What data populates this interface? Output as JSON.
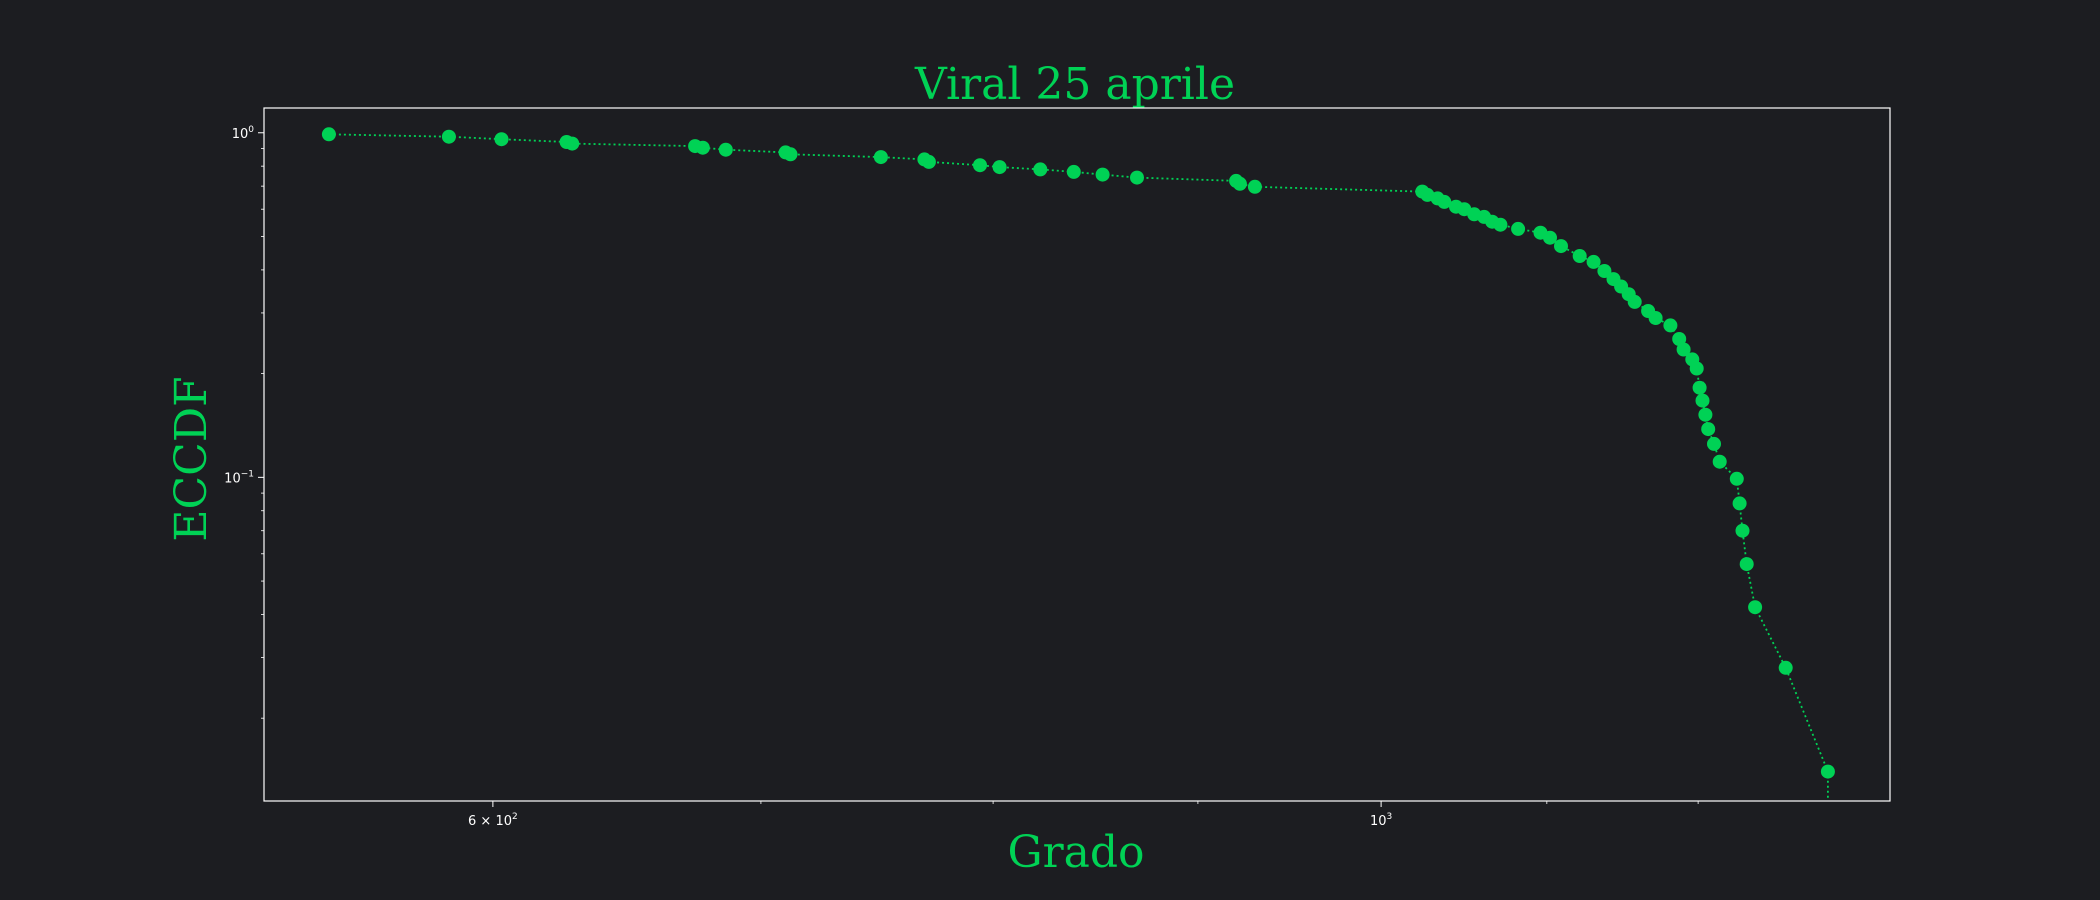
{
  "colors": {
    "background": "#1c1d21",
    "accent": "#00d255",
    "frame": "#ffffff",
    "tick_text": "#ffffff"
  },
  "chart_data": {
    "type": "scatter",
    "title": "Viral 25 aprile",
    "xlabel": "Grado",
    "ylabel": "ECCDF",
    "xscale": "log",
    "yscale": "log",
    "xlim": [
      526,
      1340
    ],
    "ylim": [
      0.0115,
      1.18
    ],
    "grid": false,
    "line_style": "dotted",
    "x_ticks": [
      {
        "value": 600,
        "label": "6 × 10²",
        "base": "6 × 10",
        "exp": "2"
      },
      {
        "value": 1000,
        "label": "10³",
        "base": "10",
        "exp": "3"
      }
    ],
    "x_minor_ticks": [
      700,
      800,
      900,
      1100,
      1200
    ],
    "y_ticks": [
      {
        "value": 1,
        "label": "10⁰",
        "base": "10",
        "exp": "0"
      },
      {
        "value": 0.1,
        "label": "10⁻¹",
        "base": "10",
        "exp": "−1"
      }
    ],
    "y_minor_ticks": [
      0.9,
      0.8,
      0.7,
      0.6,
      0.5,
      0.4,
      0.3,
      0.2,
      0.09,
      0.08,
      0.07,
      0.06,
      0.05,
      0.04,
      0.03,
      0.02
    ],
    "series": [
      {
        "points": [
          [
            546,
            0.99
          ],
          [
            585,
            0.974
          ],
          [
            603,
            0.958
          ],
          [
            626,
            0.94
          ],
          [
            628,
            0.93
          ],
          [
            674,
            0.915
          ],
          [
            677,
            0.905
          ],
          [
            686,
            0.893
          ],
          [
            710,
            0.877
          ],
          [
            712,
            0.866
          ],
          [
            750,
            0.85
          ],
          [
            769,
            0.837
          ],
          [
            771,
            0.823
          ],
          [
            794,
            0.805
          ],
          [
            803,
            0.795
          ],
          [
            822,
            0.783
          ],
          [
            838,
            0.77
          ],
          [
            852,
            0.756
          ],
          [
            869,
            0.741
          ],
          [
            920,
            0.725
          ],
          [
            922,
            0.711
          ],
          [
            930,
            0.697
          ],
          [
            1024,
            0.675
          ],
          [
            1027,
            0.66
          ],
          [
            1033,
            0.645
          ],
          [
            1037,
            0.63
          ],
          [
            1044,
            0.61
          ],
          [
            1049,
            0.6
          ],
          [
            1055,
            0.58
          ],
          [
            1061,
            0.57
          ],
          [
            1066,
            0.552
          ],
          [
            1071,
            0.541
          ],
          [
            1082,
            0.526
          ],
          [
            1096,
            0.513
          ],
          [
            1102,
            0.496
          ],
          [
            1109,
            0.469
          ],
          [
            1121,
            0.439
          ],
          [
            1130,
            0.422
          ],
          [
            1137,
            0.397
          ],
          [
            1143,
            0.376
          ],
          [
            1148,
            0.358
          ],
          [
            1153,
            0.34
          ],
          [
            1157,
            0.323
          ],
          [
            1166,
            0.304
          ],
          [
            1171,
            0.29
          ],
          [
            1181,
            0.276
          ],
          [
            1187,
            0.252
          ],
          [
            1190,
            0.235
          ],
          [
            1196,
            0.22
          ],
          [
            1199,
            0.207
          ],
          [
            1201,
            0.182
          ],
          [
            1203,
            0.167
          ],
          [
            1205,
            0.152
          ],
          [
            1207,
            0.138
          ],
          [
            1211,
            0.125
          ],
          [
            1215,
            0.111
          ],
          [
            1227,
            0.099
          ],
          [
            1229,
            0.084
          ],
          [
            1231,
            0.07
          ],
          [
            1234,
            0.056
          ],
          [
            1240,
            0.042
          ],
          [
            1262,
            0.028
          ],
          [
            1293,
            0.014
          ],
          [
            1293,
            0.0115
          ]
        ]
      }
    ]
  }
}
